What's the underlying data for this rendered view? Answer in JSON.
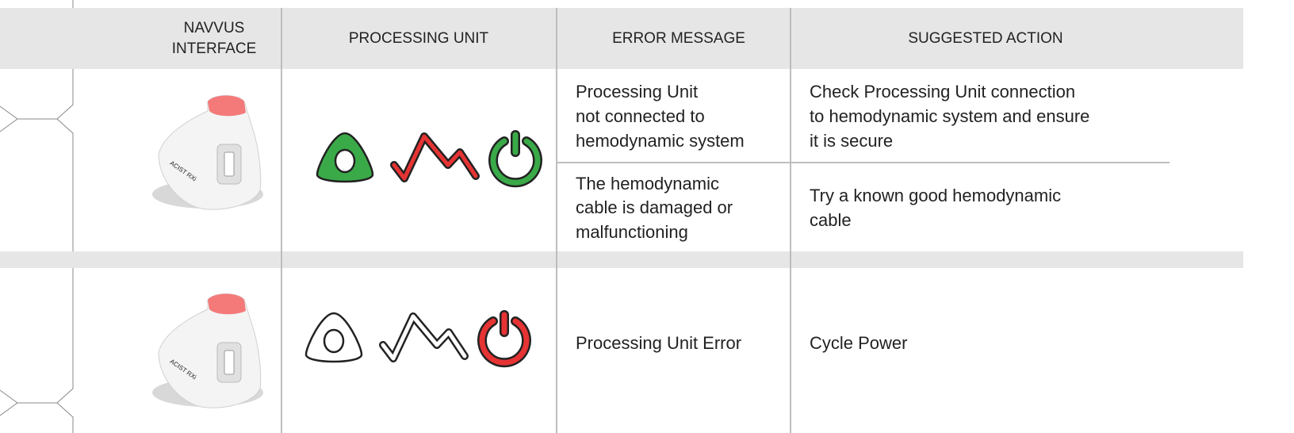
{
  "header": {
    "columns": [
      [
        "NAVVUS",
        "INTERFACE"
      ],
      [
        "PROCESSING UNIT"
      ],
      [
        "ERROR MESSAGE"
      ],
      [
        "SUGGESTED ACTION"
      ]
    ]
  },
  "rows": [
    {
      "device_label": "ACIST RXi",
      "errors": [
        {
          "message": [
            "Processing Unit",
            "not connected to",
            "hemodynamic system"
          ],
          "action": [
            "Check Processing Unit connection",
            "to hemodynamic system and ensure",
            "it is secure"
          ]
        },
        {
          "message": [
            "The hemodynamic",
            "cable is damaged or",
            "malfunctioning"
          ],
          "action": [
            "Try a known good hemodynamic",
            "cable"
          ]
        }
      ]
    },
    {
      "device_label": "ACIST RXi",
      "errors": [
        {
          "message": [
            "Processing Unit Error"
          ],
          "action": [
            "Cycle Power"
          ]
        }
      ]
    }
  ]
}
